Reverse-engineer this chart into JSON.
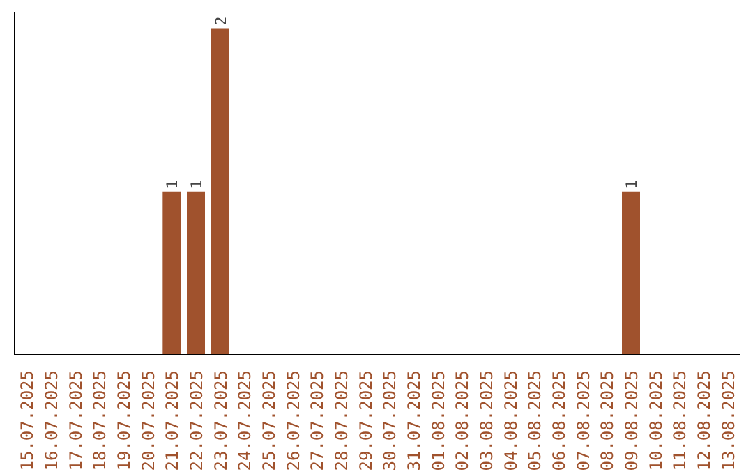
{
  "chart_data": {
    "type": "bar",
    "categories": [
      "15.07.2025",
      "16.07.2025",
      "17.07.2025",
      "18.07.2025",
      "19.07.2025",
      "20.07.2025",
      "21.07.2025",
      "22.07.2025",
      "23.07.2025",
      "24.07.2025",
      "25.07.2025",
      "26.07.2025",
      "27.07.2025",
      "28.07.2025",
      "29.07.2025",
      "30.07.2025",
      "31.07.2025",
      "01.08.2025",
      "02.08.2025",
      "03.08.2025",
      "04.08.2025",
      "05.08.2025",
      "06.08.2025",
      "07.08.2025",
      "08.08.2025",
      "09.08.2025",
      "10.08.2025",
      "11.08.2025",
      "12.08.2025",
      "13.08.2025"
    ],
    "values": [
      0,
      0,
      0,
      0,
      0,
      0,
      1,
      1,
      2,
      0,
      0,
      0,
      0,
      0,
      0,
      0,
      0,
      0,
      0,
      0,
      0,
      0,
      0,
      0,
      0,
      1,
      0,
      0,
      0,
      0
    ],
    "value_labels": [
      null,
      null,
      null,
      null,
      null,
      null,
      "1",
      "1",
      "2",
      null,
      null,
      null,
      null,
      null,
      null,
      null,
      null,
      null,
      null,
      null,
      null,
      null,
      null,
      null,
      null,
      "1",
      null,
      null,
      null,
      null
    ],
    "color": "#a0522d",
    "grid": false,
    "tick_labels": "x"
  }
}
